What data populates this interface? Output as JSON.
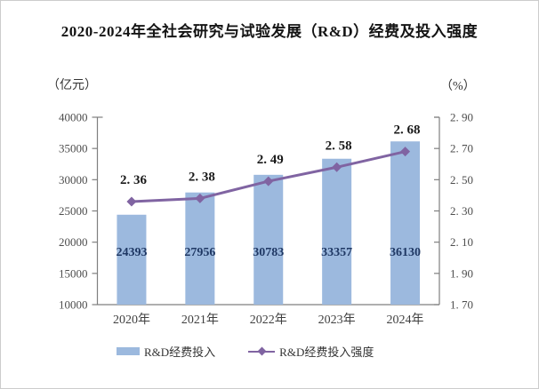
{
  "chart_data": {
    "type": "bar+line",
    "title": "2020-2024年全社会研究与试验发展（R&D）经费及投入强度",
    "categories": [
      "2020年",
      "2021年",
      "2022年",
      "2023年",
      "2024年"
    ],
    "series": [
      {
        "name": "R&D经费投入",
        "type": "bar",
        "axis": "left",
        "values": [
          24393,
          27956,
          30783,
          33357,
          36130
        ],
        "value_labels": [
          "24393",
          "27956",
          "30783",
          "33357",
          "36130"
        ],
        "color": "#9CB9DE",
        "label_color": "#1F3864"
      },
      {
        "name": "R&D经费投入强度",
        "type": "line",
        "axis": "right",
        "marker": "diamond",
        "values": [
          2.36,
          2.38,
          2.49,
          2.58,
          2.68
        ],
        "value_labels": [
          "2. 36",
          "2. 38",
          "2. 49",
          "2. 58",
          "2. 68"
        ],
        "color": "#8064A2",
        "label_color": "#1a1a1a"
      }
    ],
    "left_axis": {
      "unit": "（亿元）",
      "min": 10000,
      "max": 40000,
      "step": 5000,
      "tick_labels": [
        "40000",
        "35000",
        "30000",
        "25000",
        "20000",
        "15000",
        "10000"
      ]
    },
    "right_axis": {
      "unit": "（%）",
      "min": 1.7,
      "max": 2.9,
      "step": 0.2,
      "tick_labels": [
        "2. 90",
        "2. 70",
        "2. 50",
        "2. 30",
        "2. 10",
        "1. 90",
        "1. 70"
      ]
    },
    "style": {
      "axis_color": "#7f7f7f",
      "tick_label_color": "#4d4d4d",
      "category_label_color": "#3f3f3f"
    },
    "grid": false,
    "legend_position": "bottom"
  }
}
